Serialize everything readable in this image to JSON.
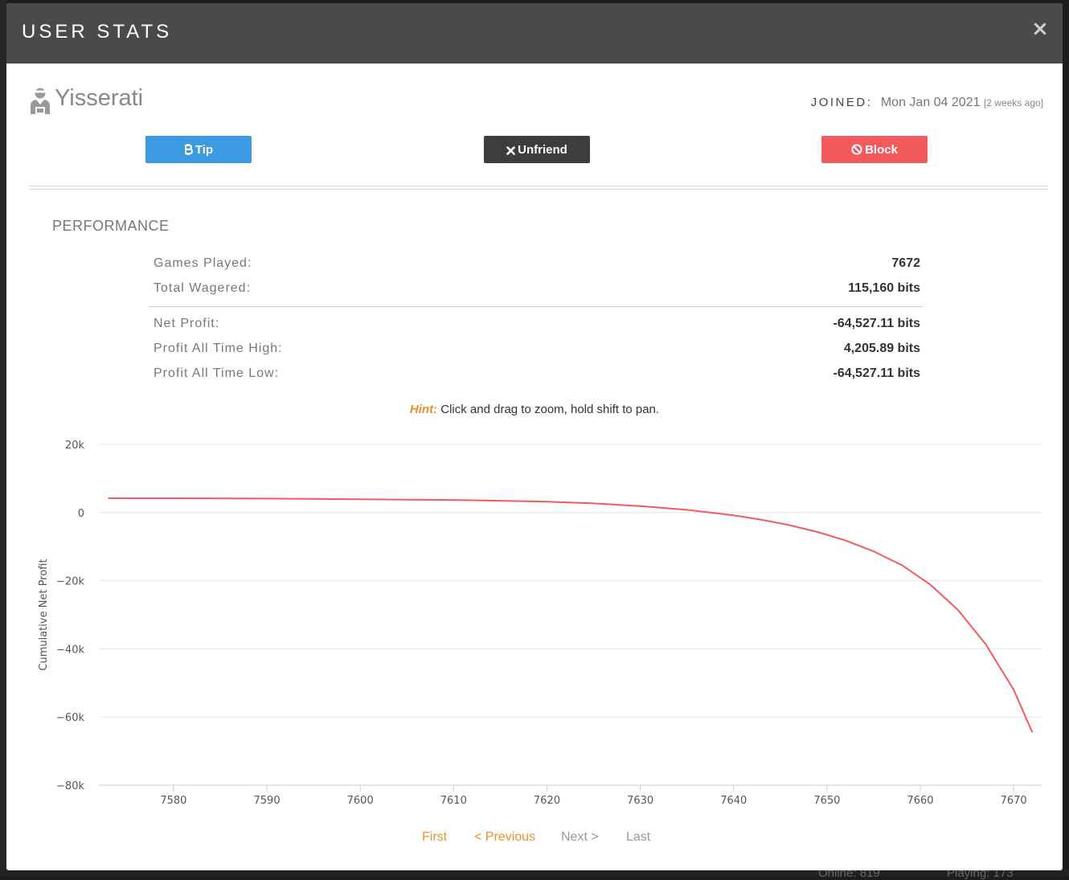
{
  "modal": {
    "title": "USER STATS",
    "close_glyph": "×"
  },
  "user": {
    "name": "Yisserati",
    "avatar_icon": "user-icon",
    "joined_label": "JOINED:",
    "joined_date": "Mon Jan 04 2021",
    "joined_ago": "[2 weeks ago]"
  },
  "actions": {
    "tip": {
      "label": "Tip",
      "icon": "bitcoin-icon",
      "color": "#3b9ae1"
    },
    "unfriend": {
      "label": "Unfriend",
      "icon": "close-icon",
      "color": "#3d3d3d"
    },
    "block": {
      "label": "Block",
      "icon": "block-icon",
      "color": "#f25a5e"
    }
  },
  "performance": {
    "title": "PERFORMANCE",
    "stats": [
      {
        "label": "Games Played:",
        "value": "7672"
      },
      {
        "label": "Total Wagered:",
        "value": "115,160 bits"
      },
      {
        "label": "Net Profit:",
        "value": "-64,527.11 bits"
      },
      {
        "label": "Profit All Time High:",
        "value": "4,205.89 bits"
      },
      {
        "label": "Profit All Time Low:",
        "value": "-64,527.11 bits"
      }
    ]
  },
  "hint": {
    "label": "Hint:",
    "text": " Click and drag to zoom, hold shift to pan."
  },
  "chart_data": {
    "type": "line",
    "title": "",
    "xlabel": "",
    "ylabel": "Cumulative Net Profit",
    "xlim": [
      7572,
      7673
    ],
    "ylim": [
      -80000,
      20000
    ],
    "y_ticks": [
      20000,
      0,
      -20000,
      -40000,
      -60000,
      -80000
    ],
    "y_tick_labels": [
      "20k",
      "0",
      "−20k",
      "−40k",
      "−60k",
      "−80k"
    ],
    "x_ticks": [
      7580,
      7590,
      7600,
      7610,
      7620,
      7630,
      7640,
      7650,
      7660,
      7670
    ],
    "x_tick_labels": [
      "7580",
      "7590",
      "7600",
      "7610",
      "7620",
      "7630",
      "7640",
      "7650",
      "7660",
      "7670"
    ],
    "grid": true,
    "series": [
      {
        "color": "#f25a5e",
        "x": [
          7573,
          7580,
          7590,
          7600,
          7610,
          7620,
          7625,
          7630,
          7635,
          7640,
          7643,
          7646,
          7649,
          7652,
          7655,
          7658,
          7661,
          7664,
          7667,
          7670,
          7672
        ],
        "y": [
          4206,
          4200,
          4100,
          3900,
          3700,
          3200,
          2700,
          1900,
          800,
          -800,
          -2100,
          -3700,
          -5700,
          -8200,
          -11400,
          -15400,
          -21000,
          -28500,
          -38600,
          -52000,
          -64527
        ]
      }
    ]
  },
  "pagination": {
    "first": "First",
    "previous": "< Previous",
    "next": "Next >",
    "last": "Last"
  },
  "background": {
    "online": "Online: 819",
    "playing": "Playing: 173"
  }
}
